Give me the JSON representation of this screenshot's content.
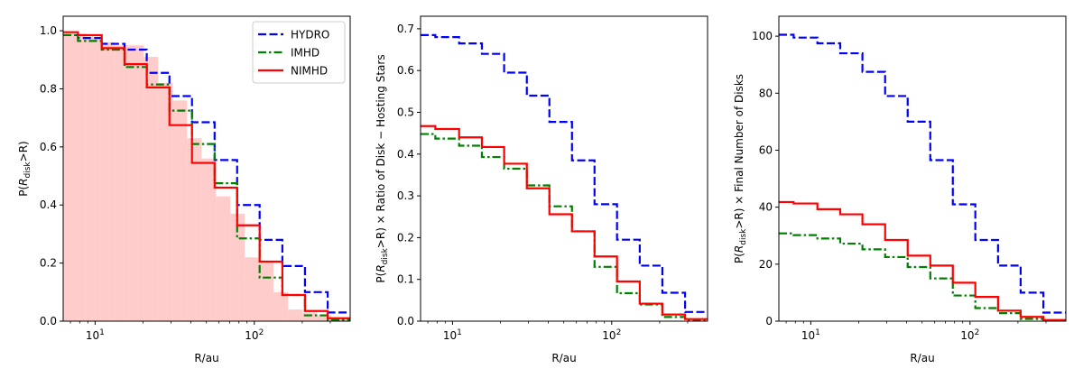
{
  "colors": {
    "HYDRO": "#0000ff",
    "IMHD": "#008000",
    "NIMHD": "#ff0000",
    "hist_fill": "#ffcccc"
  },
  "chart_data": [
    {
      "type": "line",
      "xscale": "log",
      "xlim": [
        6.3,
        400
      ],
      "ylim": [
        0,
        1.05
      ],
      "yticks": [
        0.0,
        0.2,
        0.4,
        0.6,
        0.8,
        1.0
      ],
      "ytick_labels": [
        "0.0",
        "0.2",
        "0.4",
        "0.6",
        "0.8",
        "1.0"
      ],
      "xticks": [
        10,
        100
      ],
      "xtick_labels": [
        "10¹",
        "10²"
      ],
      "xlabel": "R/au",
      "ylabel": "P(R_disk>R)",
      "legend": {
        "position": "upper right",
        "entries": [
          "HYDRO",
          "IMHD",
          "NIMHD"
        ]
      },
      "histogram": {
        "name": "NIMHD",
        "edges": [
          6.3,
          8.8,
          10.8,
          13.3,
          16.4,
          20.2,
          24.9,
          30.7,
          37.8,
          46.6,
          57.4,
          70.7,
          87.1,
          107,
          132,
          163,
          201,
          248,
          305,
          376,
          400
        ],
        "values": [
          0.99,
          0.98,
          0.96,
          0.95,
          0.95,
          0.91,
          0.82,
          0.76,
          0.63,
          0.56,
          0.43,
          0.37,
          0.22,
          0.2,
          0.1,
          0.04,
          0.03,
          0.02,
          0.01,
          0.0
        ]
      },
      "edges": [
        6.3,
        7.8,
        11.0,
        15.3,
        21.1,
        29.3,
        40.6,
        56.3,
        78.0,
        108,
        150,
        208,
        289,
        400
      ],
      "series": [
        {
          "name": "HYDRO",
          "style": "dashed",
          "values": [
            0.985,
            0.975,
            0.955,
            0.935,
            0.855,
            0.775,
            0.685,
            0.555,
            0.4,
            0.28,
            0.19,
            0.1,
            0.03
          ]
        },
        {
          "name": "IMHD",
          "style": "dashdot",
          "values": [
            0.985,
            0.965,
            0.935,
            0.875,
            0.815,
            0.725,
            0.61,
            0.475,
            0.285,
            0.15,
            0.09,
            0.02,
            0.005
          ]
        },
        {
          "name": "NIMHD",
          "style": "solid",
          "values": [
            0.995,
            0.985,
            0.94,
            0.885,
            0.805,
            0.675,
            0.545,
            0.46,
            0.33,
            0.205,
            0.09,
            0.035,
            0.01
          ]
        }
      ]
    },
    {
      "type": "line",
      "xscale": "log",
      "xlim": [
        6.3,
        400
      ],
      "ylim": [
        0,
        0.73
      ],
      "yticks": [
        0.0,
        0.1,
        0.2,
        0.3,
        0.4,
        0.5,
        0.6,
        0.7
      ],
      "ytick_labels": [
        "0.0",
        "0.1",
        "0.2",
        "0.3",
        "0.4",
        "0.5",
        "0.6",
        "0.7"
      ],
      "xticks": [
        10,
        100
      ],
      "xtick_labels": [
        "10¹",
        "10²"
      ],
      "xlabel": "R/au",
      "ylabel": "P(R_disk>R) × Ratio of Disk − Hosting Stars",
      "edges": [
        6.3,
        7.8,
        11.0,
        15.3,
        21.1,
        29.3,
        40.6,
        56.3,
        78.0,
        108,
        150,
        208,
        289,
        400
      ],
      "series": [
        {
          "name": "HYDRO",
          "style": "dashed",
          "values": [
            0.685,
            0.68,
            0.665,
            0.64,
            0.595,
            0.54,
            0.477,
            0.385,
            0.28,
            0.195,
            0.133,
            0.068,
            0.022
          ]
        },
        {
          "name": "IMHD",
          "style": "dashdot",
          "values": [
            0.448,
            0.437,
            0.42,
            0.393,
            0.365,
            0.325,
            0.275,
            0.215,
            0.13,
            0.067,
            0.04,
            0.01,
            0.003
          ]
        },
        {
          "name": "NIMHD",
          "style": "solid",
          "values": [
            0.467,
            0.46,
            0.44,
            0.417,
            0.377,
            0.318,
            0.256,
            0.215,
            0.155,
            0.095,
            0.042,
            0.016,
            0.005
          ]
        }
      ]
    },
    {
      "type": "line",
      "xscale": "log",
      "xlim": [
        6.3,
        400
      ],
      "ylim": [
        0,
        107
      ],
      "yticks": [
        0,
        20,
        40,
        60,
        80,
        100
      ],
      "ytick_labels": [
        "0",
        "20",
        "40",
        "60",
        "80",
        "100"
      ],
      "xticks": [
        10,
        100
      ],
      "xtick_labels": [
        "10¹",
        "10²"
      ],
      "xlabel": "R/au",
      "ylabel": "P(R_disk>R) × Final Number of Disks",
      "edges": [
        6.3,
        7.8,
        11.0,
        15.3,
        21.1,
        29.3,
        40.6,
        56.3,
        78.0,
        108,
        150,
        208,
        289,
        400
      ],
      "series": [
        {
          "name": "HYDRO",
          "style": "dashed",
          "values": [
            100.5,
            99.5,
            97.5,
            94,
            87.5,
            79,
            70,
            56.5,
            41,
            28.5,
            19.5,
            10,
            3
          ]
        },
        {
          "name": "IMHD",
          "style": "dashdot",
          "values": [
            30.8,
            30.2,
            29,
            27.2,
            25.2,
            22.5,
            19,
            15,
            9,
            4.6,
            2.8,
            0.8,
            0.2
          ]
        },
        {
          "name": "NIMHD",
          "style": "solid",
          "values": [
            41.8,
            41.3,
            39.3,
            37.5,
            34,
            28.5,
            23,
            19.5,
            13.5,
            8.5,
            3.7,
            1.5,
            0.4
          ]
        }
      ]
    }
  ]
}
